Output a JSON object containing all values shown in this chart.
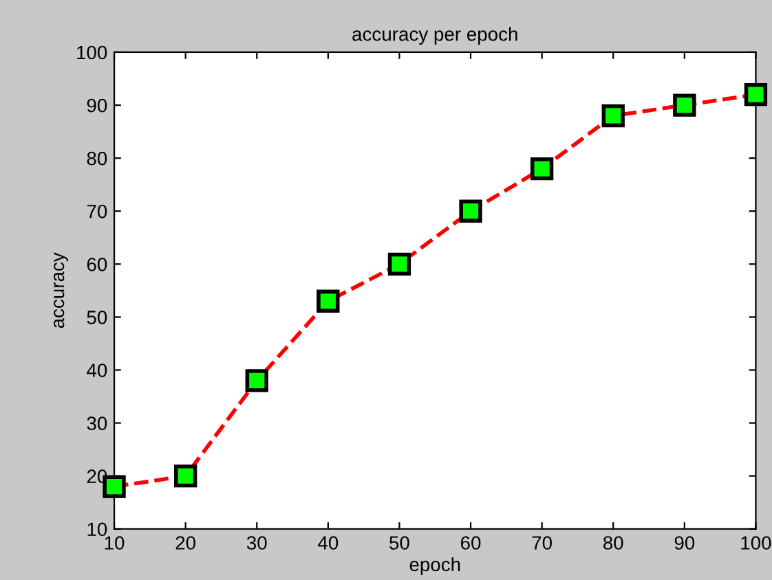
{
  "chart_data": {
    "type": "line",
    "title": "accuracy per epoch",
    "xlabel": "epoch",
    "ylabel": "accuracy",
    "x": [
      10,
      20,
      30,
      40,
      50,
      60,
      70,
      80,
      90,
      100
    ],
    "series": [
      {
        "color": "#ff0000",
        "values": [
          18,
          20,
          38,
          53,
          60,
          70,
          78,
          88,
          90,
          92
        ]
      }
    ],
    "xlim": [
      10,
      100
    ],
    "xticks": [
      10,
      20,
      30,
      40,
      50,
      60,
      70,
      80,
      90,
      100
    ],
    "ylim": [
      10,
      100
    ],
    "yticks": [
      10,
      20,
      30,
      40,
      50,
      60,
      70,
      80,
      90,
      100
    ],
    "marker": "square",
    "line_style": "dashed",
    "grid": false,
    "legend": false
  }
}
